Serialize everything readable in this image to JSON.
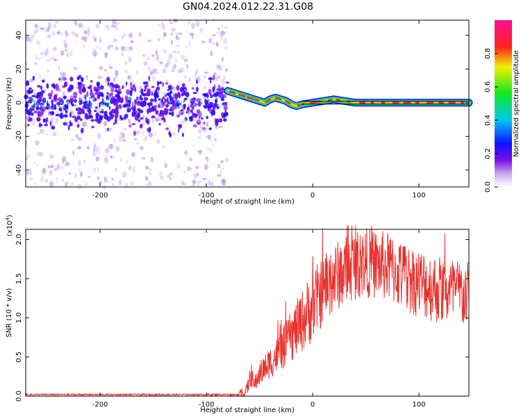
{
  "title": "GN04.2024.012.22.31.G08",
  "chart_data": [
    {
      "type": "heatmap",
      "xlabel": "Height of straight line (km)",
      "ylabel": "Frequency (Hz)",
      "xlim": [
        -270,
        147
      ],
      "ylim": [
        -50,
        49
      ],
      "xticks": [
        -200,
        -100,
        0,
        100
      ],
      "xtick_labels": [
        "-200",
        "-100",
        "0",
        "100"
      ],
      "yticks": [
        -40,
        -20,
        0,
        20,
        40
      ],
      "ytick_labels": [
        "-40",
        "-20",
        "0",
        "20",
        "40"
      ],
      "colorbar": {
        "label": "Normalized spectral amplitude",
        "range": [
          0,
          1
        ],
        "ticks": [
          0.0,
          0.2,
          0.4,
          0.6,
          0.8
        ],
        "tick_labels": [
          "0.0",
          "0.2",
          "0.4",
          "0.6",
          "0.8"
        ],
        "colormap": "rainbow (white → purple → blue → cyan → green → yellow → red → magenta)"
      },
      "noise_region_x": [
        -270,
        -80
      ],
      "signal_track": {
        "x": [
          -80,
          -70,
          -60,
          -50,
          -45,
          -40,
          -35,
          -30,
          -25,
          -20,
          -15,
          -10,
          0,
          10,
          20,
          30,
          40,
          60,
          80,
          100,
          120,
          147
        ],
        "freq": [
          7,
          5,
          3,
          1,
          0,
          2,
          3,
          2,
          1,
          -1,
          -2,
          -1,
          0,
          1,
          2,
          1,
          0,
          0,
          0,
          0,
          0,
          0
        ]
      },
      "reference_line_freq": 0,
      "grid": false
    },
    {
      "type": "line",
      "xlabel": "Height of straight line (km)",
      "ylabel": "SNR (10 * v/v)",
      "y_multiplier_label": "(x10",
      "y_multiplier_exp": "4",
      "y_multiplier_close": ")",
      "xlim": [
        -270,
        147
      ],
      "ylim": [
        0,
        2.13
      ],
      "xticks": [
        -200,
        -100,
        0,
        100
      ],
      "xtick_labels": [
        "-200",
        "-100",
        "0",
        "100"
      ],
      "yticks": [
        0.0,
        0.5,
        1.0,
        1.5,
        2.0
      ],
      "ytick_labels": [
        "0.0",
        "0.5",
        "1.0",
        "1.5",
        "2.0"
      ],
      "series": [
        {
          "color": "#e8322d",
          "envelope_x": [
            -270,
            -70,
            -63,
            -58,
            -55,
            -50,
            -40,
            -30,
            -20,
            -10,
            0,
            10,
            20,
            30,
            40,
            50,
            60,
            70,
            80,
            90,
            100,
            110,
            120,
            130,
            140,
            147
          ],
          "envelope_y": [
            0.02,
            0.02,
            0.05,
            0.28,
            0.15,
            0.3,
            0.45,
            0.6,
            0.8,
            1.0,
            1.2,
            1.4,
            1.55,
            1.65,
            1.72,
            1.75,
            1.73,
            1.7,
            1.62,
            1.55,
            1.5,
            1.45,
            1.4,
            1.38,
            1.35,
            1.32
          ]
        }
      ],
      "grid": false
    }
  ]
}
